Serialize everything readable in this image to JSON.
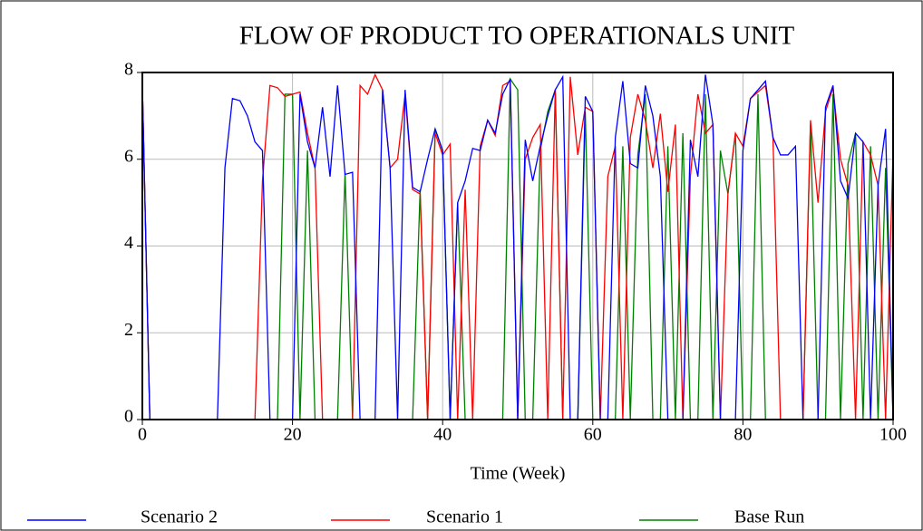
{
  "chart_data": {
    "type": "line",
    "title": "FLOW OF PRODUCT TO OPERATIONALS UNIT",
    "x_label": "Time (Week)",
    "x": [
      0,
      1,
      2,
      3,
      4,
      5,
      6,
      7,
      8,
      9,
      10,
      11,
      12,
      13,
      14,
      15,
      16,
      17,
      18,
      19,
      20,
      21,
      22,
      23,
      24,
      25,
      26,
      27,
      28,
      29,
      30,
      31,
      32,
      33,
      34,
      35,
      36,
      37,
      38,
      39,
      40,
      41,
      42,
      43,
      44,
      45,
      46,
      47,
      48,
      49,
      50,
      51,
      52,
      53,
      54,
      55,
      56,
      57,
      58,
      59,
      60,
      61,
      62,
      63,
      64,
      65,
      66,
      67,
      68,
      69,
      70,
      71,
      72,
      73,
      74,
      75,
      76,
      77,
      78,
      79,
      80,
      81,
      82,
      83,
      84,
      85,
      86,
      87,
      88,
      89,
      90,
      91,
      92,
      93,
      94,
      95,
      96,
      97,
      98,
      99,
      100
    ],
    "series": [
      {
        "name": "Base Run",
        "color": "#008000",
        "values": [
          7.7,
          0,
          0,
          0,
          0,
          0,
          0,
          0,
          0,
          0,
          0,
          0,
          0,
          0,
          0,
          0,
          0,
          0,
          0,
          7.5,
          7.5,
          0,
          6.2,
          0,
          0,
          0,
          0,
          5.7,
          0,
          0,
          0,
          0,
          0,
          0,
          0,
          0,
          0,
          5.3,
          0,
          6.7,
          6.2,
          0,
          5.0,
          0,
          0,
          0,
          0,
          0,
          0,
          7.85,
          7.6,
          0,
          0,
          6.2,
          7.1,
          7.6,
          0,
          0,
          0,
          7.1,
          0,
          0,
          0,
          0,
          6.3,
          0,
          6.1,
          7.5,
          0,
          0,
          6.3,
          0,
          6.6,
          0,
          0,
          7.5,
          0,
          6.2,
          5.2,
          6.6,
          0,
          0,
          7.5,
          0,
          0,
          0,
          0,
          0,
          0,
          6.8,
          0,
          0,
          7.5,
          0,
          5.9,
          6.6,
          0,
          6.3,
          0,
          5.8,
          0
        ]
      },
      {
        "name": "Scenario 1",
        "color": "#ff0000",
        "values": [
          7.7,
          0,
          0,
          0,
          0,
          0,
          0,
          0,
          0,
          0,
          0,
          0,
          0,
          0,
          0,
          0,
          5.5,
          7.7,
          7.65,
          7.45,
          7.5,
          7.55,
          6.6,
          5.8,
          0,
          0,
          0,
          0,
          0,
          7.7,
          7.5,
          7.95,
          7.6,
          5.8,
          6.0,
          7.5,
          5.3,
          5.2,
          0,
          6.6,
          6.1,
          6.35,
          0,
          5.3,
          0,
          6.3,
          6.9,
          6.55,
          7.7,
          7.8,
          0,
          6.0,
          6.5,
          6.8,
          0,
          7.6,
          0,
          7.9,
          6.1,
          7.2,
          7.1,
          0,
          5.6,
          6.3,
          0,
          6.5,
          7.5,
          6.9,
          5.8,
          7.05,
          5.25,
          6.8,
          0,
          5.6,
          7.5,
          6.6,
          6.8,
          0,
          5.2,
          6.6,
          6.3,
          7.4,
          7.55,
          7.7,
          6.5,
          0,
          0,
          0,
          0,
          6.9,
          5.0,
          7.1,
          7.65,
          6.0,
          5.4,
          0,
          6.4,
          6.1,
          5.4,
          0,
          6.2
        ]
      },
      {
        "name": "Scenario 2",
        "color": "#0000ff",
        "values": [
          7.7,
          0,
          0,
          0,
          0,
          0,
          0,
          0,
          0,
          0,
          0,
          5.8,
          7.4,
          7.35,
          7.0,
          6.4,
          6.2,
          0,
          0,
          0,
          0,
          7.5,
          6.4,
          5.8,
          7.2,
          5.6,
          7.7,
          5.65,
          5.7,
          0,
          0,
          0,
          7.6,
          5.8,
          0,
          7.6,
          5.35,
          5.25,
          6.0,
          6.7,
          6.2,
          0,
          5.0,
          5.5,
          6.25,
          6.2,
          6.9,
          6.6,
          7.5,
          7.85,
          0,
          6.45,
          5.5,
          6.3,
          7.0,
          7.6,
          7.9,
          0,
          0,
          7.45,
          7.1,
          0,
          0,
          6.5,
          7.8,
          5.9,
          5.8,
          7.7,
          7.0,
          5.6,
          0,
          0,
          0,
          6.45,
          5.6,
          7.95,
          6.8,
          0,
          0,
          0,
          6.2,
          7.4,
          7.6,
          7.8,
          6.5,
          6.1,
          6.1,
          6.3,
          0,
          0,
          0,
          7.2,
          7.7,
          5.5,
          5.1,
          6.6,
          6.4,
          0,
          5.4,
          6.7,
          0
        ]
      }
    ],
    "legend_order": [
      2,
      1,
      0
    ],
    "xlim": [
      0,
      100
    ],
    "xticks": [
      0,
      20,
      40,
      60,
      80,
      100
    ],
    "ylim": [
      0,
      8
    ],
    "yticks": [
      0,
      2,
      4,
      6,
      8
    ],
    "grid": true,
    "legend": "bottom"
  }
}
